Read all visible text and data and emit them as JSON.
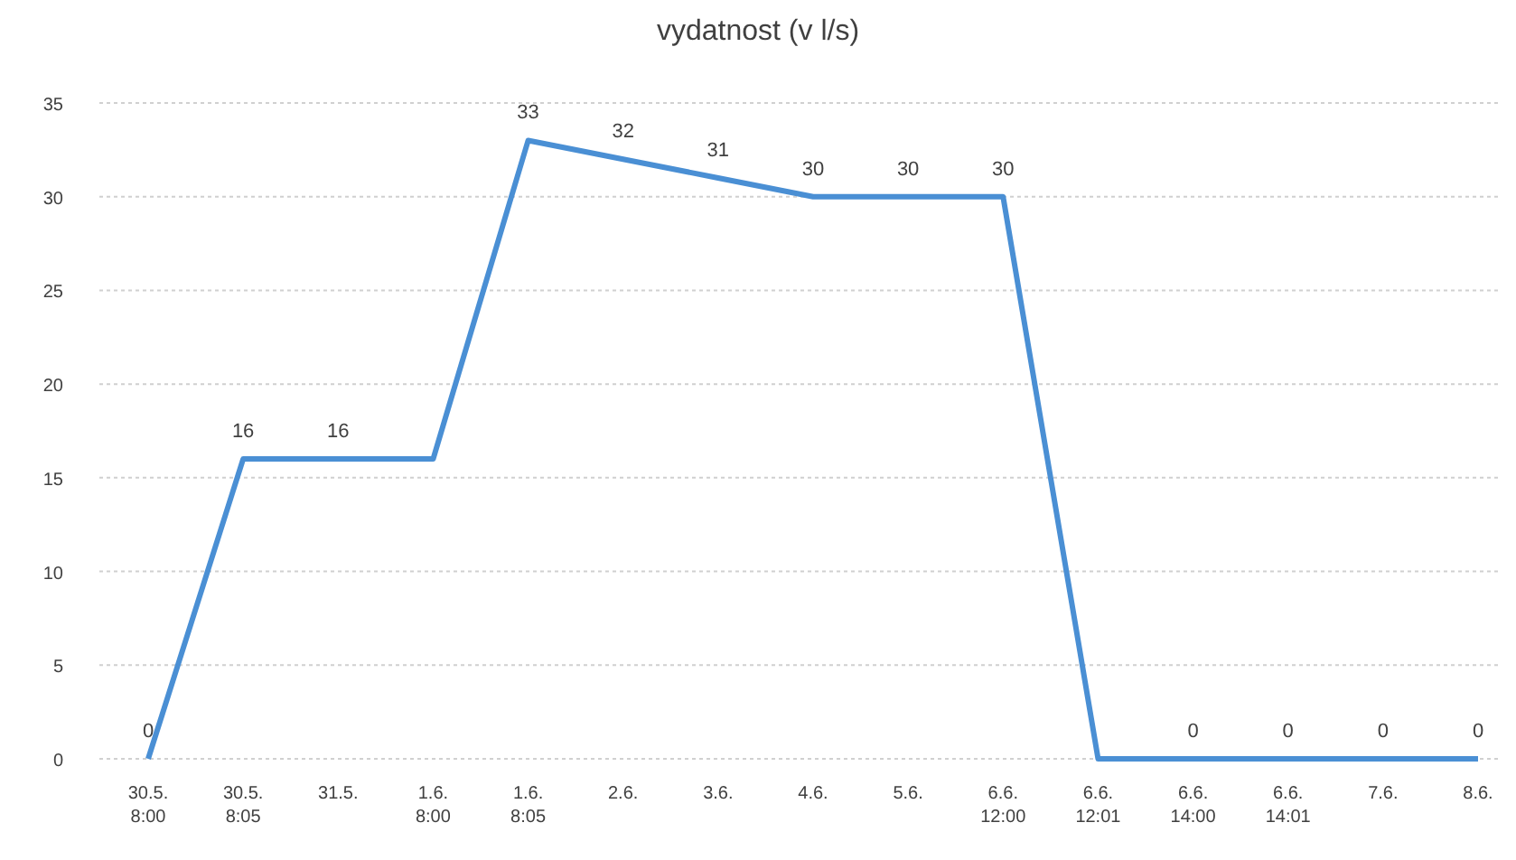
{
  "chart_data": {
    "type": "line",
    "title": "vydatnost (v l/s)",
    "categories": [
      "30.5.\n8:00",
      "30.5.\n8:05",
      "31.5.",
      "1.6.\n8:00",
      "1.6.\n8:05",
      "2.6.",
      "3.6.",
      "4.6.",
      "5.6.",
      "6.6.\n12:00",
      "6.6.\n12:01",
      "6.6.\n14:00",
      "6.6.\n14:01",
      "7.6.",
      "8.6."
    ],
    "series": [
      {
        "color": "#4a8fd4",
        "values": [
          0,
          16,
          16,
          16,
          33,
          32,
          31,
          30,
          30,
          30,
          0,
          0,
          0,
          0,
          0
        ],
        "value_labels": [
          "0",
          "16",
          "16",
          null,
          "33",
          "32",
          "31",
          "30",
          "30",
          "30",
          null,
          "0",
          "0",
          "0",
          "0"
        ]
      }
    ],
    "ylim": [
      0,
      35
    ],
    "yticks": [
      0,
      5,
      10,
      15,
      20,
      25,
      30,
      35
    ],
    "grid": "y",
    "marker": "none",
    "line_style": "solid"
  }
}
